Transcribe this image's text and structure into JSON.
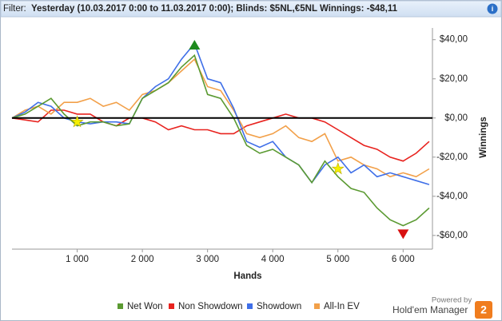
{
  "header": {
    "filter_label": "Filter:",
    "filter": "Yesterday (10.03.2017 0:00 to 11.03.2017 0:00); Blinds: $5NL,€5NL  Winnings: -$48,11"
  },
  "branding": {
    "powered_by": "Powered by",
    "name": "Hold'em Manager",
    "version": "2"
  },
  "chart_data": {
    "type": "line",
    "xlabel": "Hands",
    "ylabel": "Winnings",
    "x": [
      0,
      200,
      400,
      600,
      800,
      1000,
      1200,
      1400,
      1600,
      1800,
      2000,
      2200,
      2400,
      2600,
      2800,
      3000,
      3200,
      3400,
      3600,
      3800,
      4000,
      4200,
      4400,
      4600,
      4800,
      5000,
      5200,
      5400,
      5600,
      5800,
      6000,
      6200,
      6400
    ],
    "series": [
      {
        "name": "Net Won",
        "color": "#5b9a32",
        "values": [
          0,
          2,
          6,
          10,
          2,
          -4,
          -2,
          -2,
          -4,
          -3,
          10,
          14,
          18,
          26,
          32,
          12,
          10,
          0,
          -14,
          -18,
          -16,
          -20,
          -24,
          -33,
          -22,
          -30,
          -36,
          -38,
          -46,
          -52,
          -55,
          -52,
          -46
        ]
      },
      {
        "name": "Non Showdown",
        "color": "#e8231f",
        "values": [
          0,
          -1,
          -2,
          4,
          4,
          2,
          2,
          -2,
          -4,
          0,
          0,
          -2,
          -6,
          -4,
          -6,
          -6,
          -8,
          -8,
          -4,
          -2,
          0,
          2,
          0,
          0,
          -2,
          -6,
          -10,
          -14,
          -16,
          -20,
          -22,
          -18,
          -12
        ]
      },
      {
        "name": "Showdown",
        "color": "#3f6fe8",
        "values": [
          0,
          3,
          8,
          6,
          0,
          -2,
          -3,
          -2,
          -2,
          -3,
          10,
          16,
          20,
          30,
          38,
          20,
          18,
          5,
          -12,
          -15,
          -12,
          -20,
          -24,
          -33,
          -24,
          -20,
          -28,
          -24,
          -30,
          -28,
          -30,
          -32,
          -34
        ]
      },
      {
        "name": "All-In EV",
        "color": "#f2a049",
        "values": [
          0,
          4,
          6,
          2,
          8,
          8,
          10,
          6,
          8,
          4,
          12,
          14,
          18,
          24,
          30,
          16,
          14,
          4,
          -8,
          -10,
          -8,
          -4,
          -10,
          -12,
          -8,
          -22,
          -20,
          -24,
          -26,
          -30,
          -28,
          -30,
          -26
        ]
      }
    ],
    "peak": {
      "x": 2800,
      "y": 37,
      "color": "#1e8a1e"
    },
    "trough": {
      "x": 6000,
      "y": -59,
      "color": "#d81010"
    },
    "stars": {
      "x": [
        1000,
        5000
      ],
      "y": [
        -2,
        -26
      ],
      "color": "#f5f000"
    },
    "xlim": [
      0,
      6450
    ],
    "ylim": [
      -67,
      46
    ],
    "xticks": [
      {
        "value": 1000,
        "label": "1 000"
      },
      {
        "value": 2000,
        "label": "2 000"
      },
      {
        "value": 3000,
        "label": "3 000"
      },
      {
        "value": 4000,
        "label": "4 000"
      },
      {
        "value": 5000,
        "label": "5 000"
      },
      {
        "value": 6000,
        "label": "6 000"
      }
    ],
    "yticks": [
      {
        "value": -60,
        "label": "-$60,00"
      },
      {
        "value": -40,
        "label": "-$40,00"
      },
      {
        "value": -20,
        "label": "-$20,00"
      },
      {
        "value": 0,
        "label": "$0,00"
      },
      {
        "value": 20,
        "label": "$20,00"
      },
      {
        "value": 40,
        "label": "$40,00"
      }
    ],
    "grid": false,
    "legend": "bottom"
  }
}
